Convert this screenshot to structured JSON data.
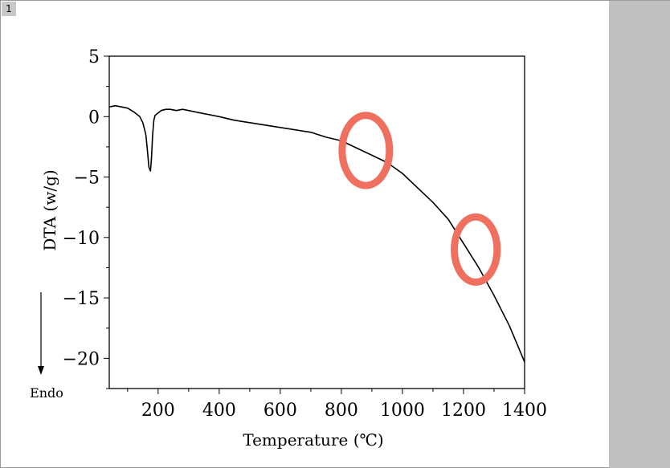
{
  "page": {
    "badge": "1"
  },
  "chart_data": {
    "type": "line",
    "title": "",
    "xlabel": "Temperature (℃)",
    "ylabel": "DTA (w/g)",
    "xlim": [
      40,
      1400
    ],
    "ylim": [
      -22.5,
      5
    ],
    "xticks": [
      200,
      400,
      600,
      800,
      1000,
      1200,
      1400
    ],
    "yticks": [
      5,
      0,
      -5,
      -10,
      -15,
      -20
    ],
    "xtick_labels": [
      "200",
      "400",
      "600",
      "800",
      "1000",
      "1200",
      "1400"
    ],
    "ytick_labels": [
      "5",
      "0",
      "−5",
      "−10",
      "−15",
      "−20"
    ],
    "grid": false,
    "legend": "none",
    "series": [
      {
        "color": "#000000",
        "x": [
          40,
          60,
          80,
          100,
          120,
          140,
          150,
          160,
          165,
          170,
          175,
          178,
          182,
          186,
          190,
          195,
          200,
          210,
          225,
          240,
          260,
          280,
          300,
          340,
          400,
          450,
          500,
          550,
          600,
          650,
          700,
          750,
          800,
          850,
          900,
          950,
          1000,
          1050,
          1100,
          1150,
          1200,
          1250,
          1300,
          1350,
          1400
        ],
        "y": [
          0.8,
          0.9,
          0.8,
          0.7,
          0.4,
          0.0,
          -0.5,
          -1.5,
          -2.8,
          -4.2,
          -4.5,
          -3.5,
          -1.5,
          -0.3,
          0.1,
          0.2,
          0.3,
          0.5,
          0.6,
          0.6,
          0.5,
          0.6,
          0.5,
          0.3,
          0.0,
          -0.3,
          -0.5,
          -0.7,
          -0.9,
          -1.1,
          -1.3,
          -1.7,
          -2.0,
          -2.6,
          -3.2,
          -3.8,
          -4.7,
          -5.9,
          -7.1,
          -8.5,
          -10.5,
          -12.5,
          -14.8,
          -17.3,
          -20.3
        ]
      }
    ],
    "annotations": {
      "endo_arrow_label": "Endo",
      "highlight_color": "#f07060",
      "highlights": [
        {
          "cx": 880,
          "cy": -2.8,
          "rx": 155,
          "ry": 2.9
        },
        {
          "cx": 1240,
          "cy": -11.0,
          "rx": 140,
          "ry": 2.7
        }
      ]
    }
  }
}
